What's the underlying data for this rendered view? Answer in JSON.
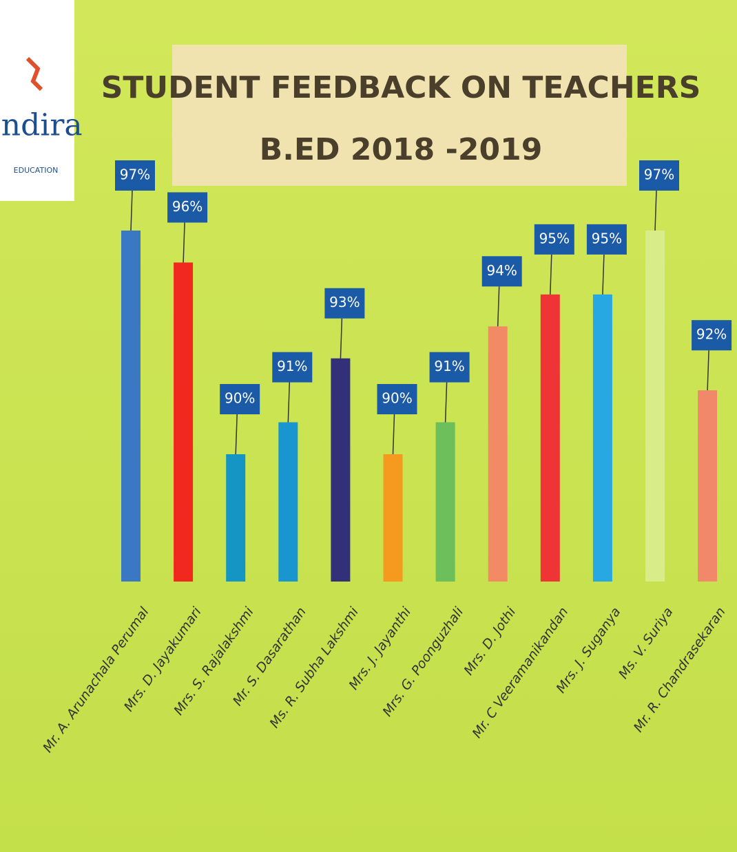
{
  "logo": {
    "name": "Indira",
    "tagline": "EDUCATION"
  },
  "chart_data": {
    "type": "bar",
    "title": "STUDENT FEEDBACK ON TEACHERS",
    "subtitle": "B.ED 2018 -2019",
    "categories": [
      "Mr. A. Arunachala Perumal",
      "Mrs. D. Jayakumari",
      "Mrs. S. Rajalakshmi",
      "Mr. S. Dasarathan",
      "Ms. R. Subha Lakshmi",
      "Mrs. J. Jayanthi",
      "Mrs. G. Poonguzhali",
      "Mrs. D. Jothi",
      "Mr. C Veeramanikandan",
      "Mrs. J. Suganya",
      "Ms. V. Suriya",
      "Mr. R. Chandrasekaran"
    ],
    "values": [
      97,
      96,
      90,
      91,
      93,
      90,
      91,
      94,
      95,
      95,
      97,
      92
    ],
    "value_labels": [
      "97%",
      "96%",
      "90%",
      "91%",
      "93%",
      "90%",
      "91%",
      "94%",
      "95%",
      "95%",
      "97%",
      "92%"
    ],
    "colors": [
      "#3b78c4",
      "#f0281e",
      "#1495c4",
      "#1996d0",
      "#33307a",
      "#f59a1e",
      "#6cbf5a",
      "#f28a66",
      "#ee3434",
      "#27a8e2",
      "#d8ec8a",
      "#f2886a"
    ]
  }
}
